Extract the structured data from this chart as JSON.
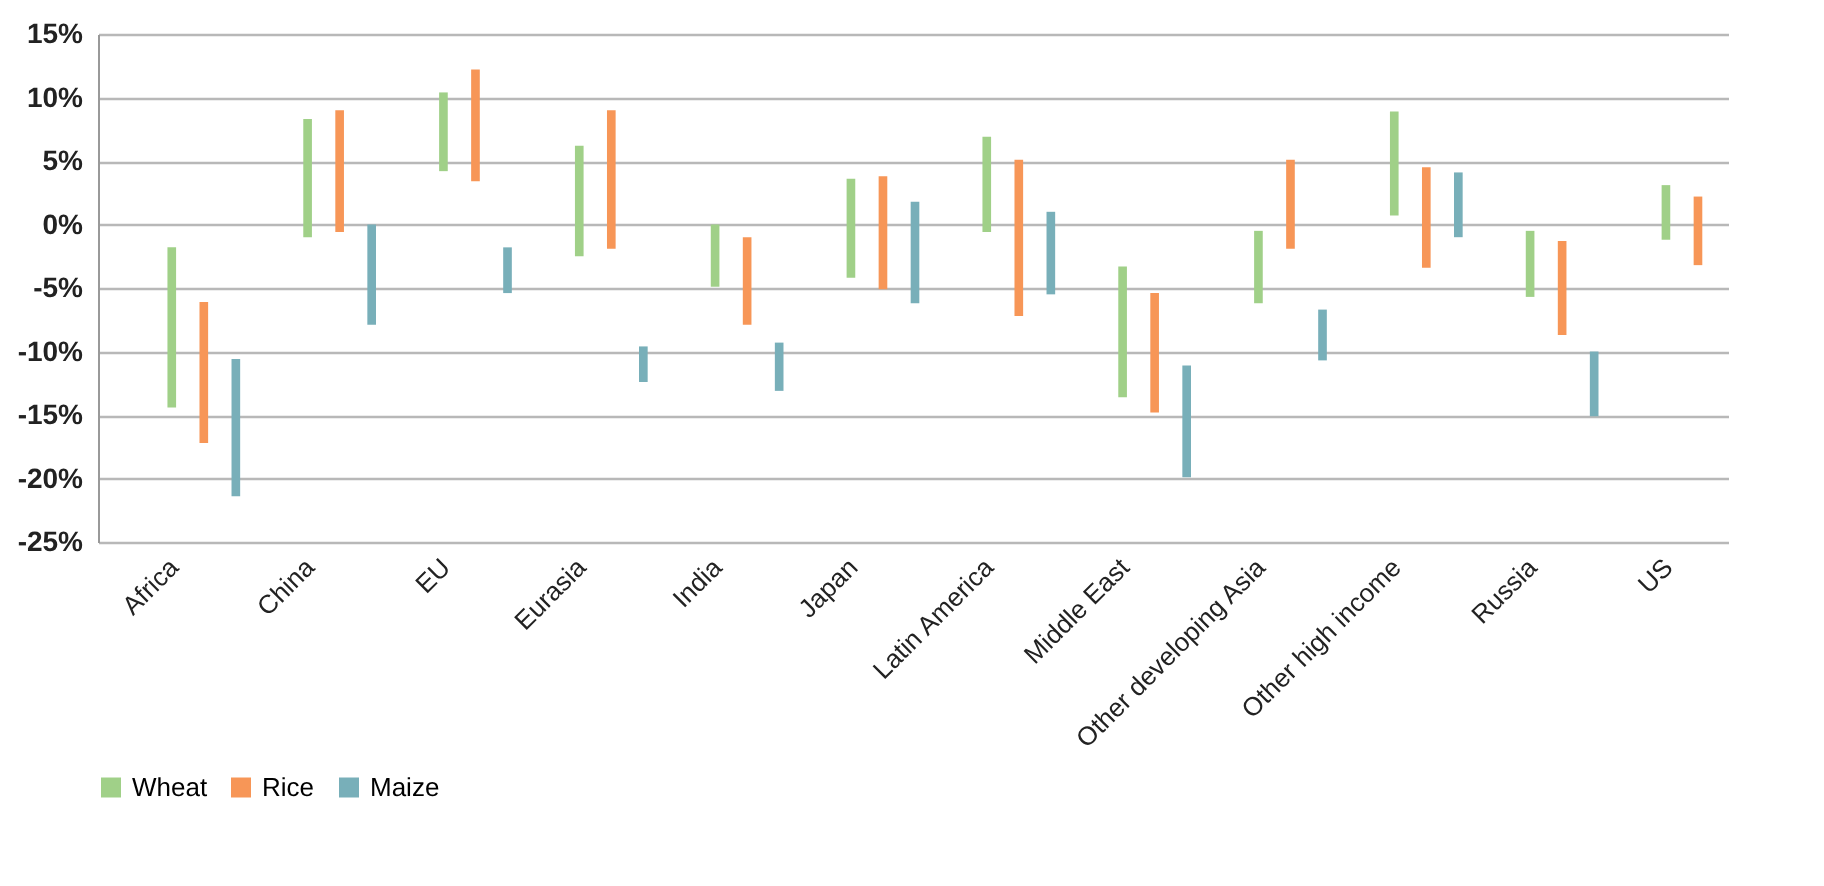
{
  "chart_data": {
    "type": "bar",
    "categories": [
      "Africa",
      "China",
      "EU",
      "Eurasia",
      "India",
      "Japan",
      "Latin America",
      "Middle East",
      "Other developing Asia",
      "Other high income",
      "Russia",
      "US"
    ],
    "series": [
      {
        "name": "Wheat",
        "color": "#a0d088",
        "base": [
          -14.4,
          -1.0,
          4.2,
          -2.5,
          -4.9,
          -4.2,
          -0.6,
          -13.6,
          -6.2,
          0.7,
          -5.7,
          -1.2
        ],
        "values": [
          12.6,
          9.3,
          6.2,
          8.7,
          4.9,
          7.8,
          7.5,
          10.3,
          5.7,
          8.2,
          5.2,
          4.3
        ]
      },
      {
        "name": "Rice",
        "color": "#f79657",
        "base": [
          -17.2,
          -0.6,
          3.4,
          -1.9,
          -7.9,
          -5.1,
          -7.2,
          -14.8,
          -1.9,
          -3.4,
          -8.7,
          -3.2
        ],
        "values": [
          11.1,
          9.6,
          8.8,
          10.9,
          6.9,
          8.9,
          12.3,
          9.4,
          7.0,
          7.9,
          7.4,
          5.4
        ]
      },
      {
        "name": "Maize",
        "color": "#78afb9",
        "base": [
          -21.4,
          -7.9,
          -5.4,
          -12.4,
          -13.1,
          -6.2,
          -5.5,
          -19.9,
          -10.7,
          -1.0,
          -15.1,
          null
        ],
        "values": [
          10.8,
          7.9,
          3.6,
          2.8,
          3.8,
          8.0,
          6.5,
          8.8,
          4.0,
          5.1,
          5.1,
          null
        ]
      }
    ],
    "ylim": [
      -25,
      15
    ],
    "yticks": [
      {
        "value": -25,
        "label": "-25%"
      },
      {
        "value": -20,
        "label": "-20%"
      },
      {
        "value": -15,
        "label": "-15%"
      },
      {
        "value": -10,
        "label": "-10%"
      },
      {
        "value": -5,
        "label": "-5%"
      },
      {
        "value": 0,
        "label": "0%"
      },
      {
        "value": 5,
        "label": "5%"
      },
      {
        "value": 10,
        "label": "10%"
      },
      {
        "value": 15,
        "label": "15%"
      }
    ],
    "grid": "y",
    "legend": "bottom"
  }
}
